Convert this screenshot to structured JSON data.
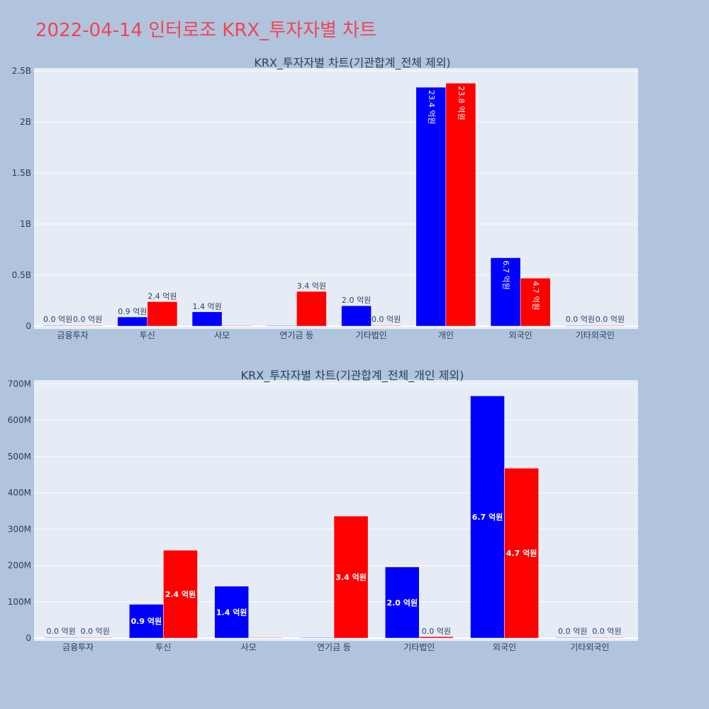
{
  "page": {
    "title": "2022-04-14 인터로조 KRX_투자자별 차트"
  },
  "colors": {
    "background": "#b0c4de",
    "plot_bg": "#e5ecf6",
    "buy": "#0000ff",
    "sell": "#ff0000",
    "title": "#ef4456",
    "text": "#2a3f5f"
  },
  "chart_data": [
    {
      "type": "bar",
      "title": "KRX_투자자별 차트(기관합계_전체 제외)",
      "categories": [
        "금융투자",
        "투신",
        "사모",
        "연기금 등",
        "기타법인",
        "개인",
        "외국인",
        "기타외국인"
      ],
      "series": [
        {
          "color": "#0000ff",
          "values": [
            0,
            90000000,
            140000000,
            0,
            200000000,
            2340000000,
            670000000,
            0
          ]
        },
        {
          "color": "#ff0000",
          "values": [
            0,
            240000000,
            0,
            340000000,
            0,
            2380000000,
            470000000,
            0
          ]
        }
      ],
      "labels": [
        [
          "0.0 억원",
          "0.9 억원",
          "1.4 억원",
          "",
          "2.0 억원",
          "23.4 억원",
          "6.7 억원",
          "0.0 억원"
        ],
        [
          "0.0 억원",
          "2.4 억원",
          "",
          "3.4 억원",
          "0.0 억원",
          "23.8 억원",
          "4.7 억원",
          "0.0 억원"
        ]
      ],
      "ylim": [
        0,
        2500000000
      ],
      "yticks": [
        0,
        500000000,
        1000000000,
        1500000000,
        2000000000,
        2500000000
      ],
      "ytick_labels": [
        "0",
        "0.5B",
        "1B",
        "1.5B",
        "2B",
        "2.5B"
      ],
      "grid": true
    },
    {
      "type": "bar",
      "title": "KRX_투자자별 차트(기관합계_전체_개인 제외)",
      "categories": [
        "금융투자",
        "투신",
        "사모",
        "연기금 등",
        "기타법인",
        "외국인",
        "기타외국인"
      ],
      "series": [
        {
          "color": "#0000ff",
          "values": [
            0,
            93000000,
            143000000,
            0,
            196000000,
            667000000,
            0
          ]
        },
        {
          "color": "#ff0000",
          "values": [
            0,
            242000000,
            0,
            336000000,
            4000000,
            468000000,
            0
          ]
        }
      ],
      "labels": [
        [
          "0.0 억원",
          "0.9 억원",
          "1.4 억원",
          "",
          "2.0 억원",
          "6.7 억원",
          "0.0 억원"
        ],
        [
          "0.0 억원",
          "2.4 억원",
          "",
          "3.4 억원",
          "0.0 억원",
          "4.7 억원",
          "0.0 억원"
        ]
      ],
      "ylim": [
        0,
        700000000
      ],
      "yticks": [
        0,
        100000000,
        200000000,
        300000000,
        400000000,
        500000000,
        600000000,
        700000000
      ],
      "ytick_labels": [
        "0",
        "100M",
        "200M",
        "300M",
        "400M",
        "500M",
        "600M",
        "700M"
      ],
      "grid": true
    }
  ]
}
